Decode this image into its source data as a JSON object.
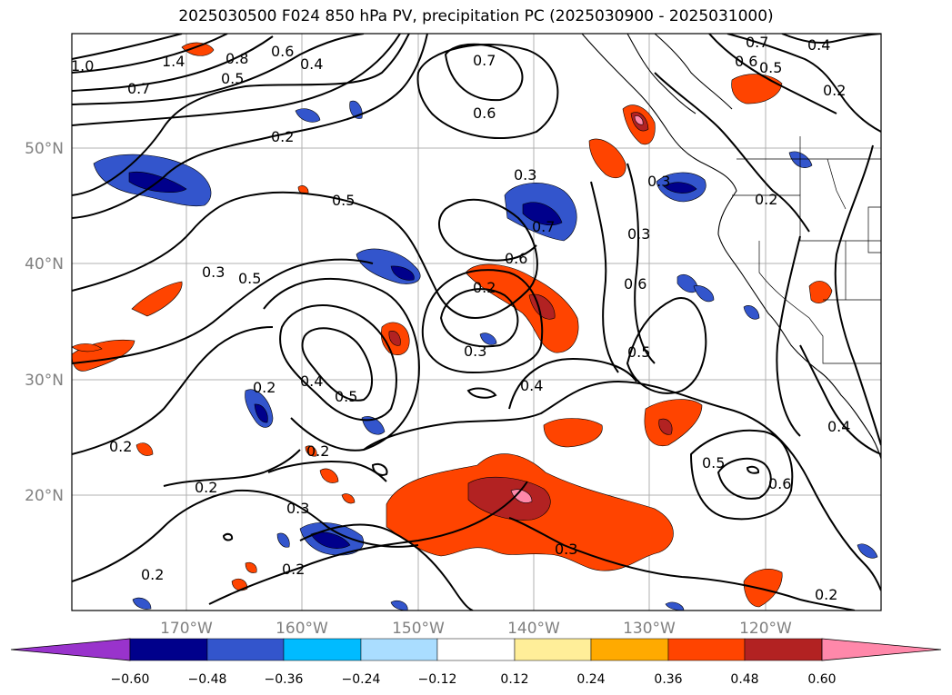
{
  "title": "2025030500 F024 850 hPa PV, precipitation PC (2025030900 - 2025031000)",
  "latitude_labels": [
    "50°N",
    "40°N",
    "30°N",
    "20°N"
  ],
  "longitude_labels": [
    "170°W",
    "160°W",
    "150°W",
    "140°W",
    "130°W",
    "120°W"
  ],
  "colorbar": {
    "ticks": [
      "−0.60",
      "−0.48",
      "−0.36",
      "−0.24",
      "−0.12",
      "0.12",
      "0.24",
      "0.36",
      "0.48",
      "0.60"
    ],
    "colors": [
      "#9933cc",
      "#00008b",
      "#3355cc",
      "#00bbff",
      "#aaddff",
      "#ffffff",
      "#ffee99",
      "#ffaa00",
      "#ff4400",
      "#b22222",
      "#ff88aa"
    ]
  },
  "contour_labels": [
    "1.0",
    "1.4",
    "0.7",
    "0.8",
    "0.6",
    "0.4",
    "0.5",
    "0.2",
    "0.7",
    "0.6",
    "0.5",
    "0.3",
    "0.5",
    "0.7",
    "0.6",
    "0.2",
    "0.3",
    "0.4",
    "0.5",
    "0.3",
    "0.2",
    "0.4",
    "0.2",
    "0.3",
    "0.5",
    "0.6",
    "0.2",
    "0.3",
    "0.2",
    "0.2",
    "0.2",
    "0.7",
    "0.6",
    "0.5",
    "0.4",
    "0.2",
    "0.3",
    "0.3",
    "0.2",
    "0.5",
    "0.6",
    "0.4",
    "0.2"
  ]
}
